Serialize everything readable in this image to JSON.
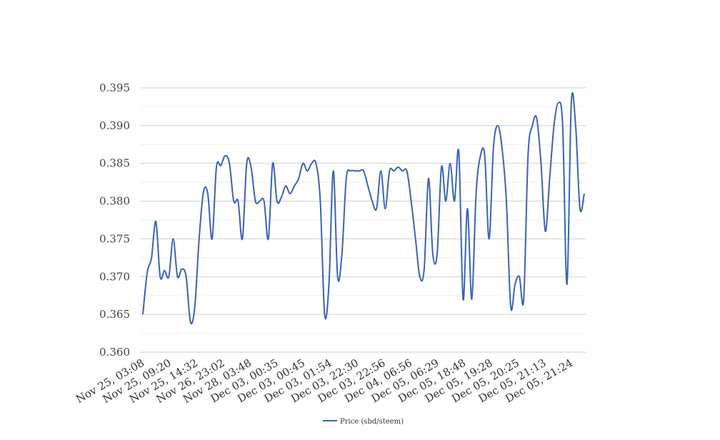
{
  "chart_data": {
    "type": "line",
    "title": "",
    "xlabel": "",
    "ylabel": "",
    "ylim": [
      0.36,
      0.395
    ],
    "grid": true,
    "legend_position": "bottom",
    "y_ticks": [
      "0.360",
      "0.365",
      "0.370",
      "0.375",
      "0.380",
      "0.385",
      "0.390",
      "0.395"
    ],
    "x_tick_labels": [
      "Nov 25, 03:08",
      "Nov 25, 09:20",
      "Nov 25, 14:32",
      "Nov 26, 23:02",
      "Nov 28, 03:48",
      "Dec 03, 00:35",
      "Dec 03, 00:45",
      "Dec 03, 01:54",
      "Dec 03, 22:30",
      "Dec 03, 22:56",
      "Dec 04, 06:56",
      "Dec 05, 06:29",
      "Dec 05, 18:48",
      "Dec 05, 19:28",
      "Dec 05, 20:25",
      "Dec 05, 21:13",
      "Dec 05, 21:24"
    ],
    "series": [
      {
        "name": "Price (sbd/steem)",
        "color": "#3a62b8",
        "values": [
          0.365,
          0.3705,
          0.3725,
          0.3773,
          0.37,
          0.3708,
          0.37,
          0.375,
          0.37,
          0.371,
          0.37,
          0.364,
          0.366,
          0.375,
          0.3812,
          0.381,
          0.375,
          0.3845,
          0.3847,
          0.386,
          0.385,
          0.38,
          0.38,
          0.375,
          0.385,
          0.3845,
          0.38,
          0.38,
          0.38,
          0.375,
          0.385,
          0.38,
          0.3805,
          0.382,
          0.381,
          0.382,
          0.383,
          0.385,
          0.384,
          0.385,
          0.385,
          0.38,
          0.365,
          0.369,
          0.384,
          0.37,
          0.373,
          0.383,
          0.384,
          0.384,
          0.384,
          0.384,
          0.382,
          0.38,
          0.379,
          0.384,
          0.379,
          0.384,
          0.384,
          0.3845,
          0.384,
          0.384,
          0.38,
          0.375,
          0.37,
          0.371,
          0.383,
          0.373,
          0.373,
          0.3845,
          0.38,
          0.385,
          0.38,
          0.3865,
          0.367,
          0.379,
          0.367,
          0.381,
          0.386,
          0.386,
          0.375,
          0.387,
          0.39,
          0.387,
          0.38,
          0.366,
          0.369,
          0.37,
          0.367,
          0.386,
          0.39,
          0.391,
          0.385,
          0.376,
          0.383,
          0.39,
          0.393,
          0.39,
          0.369,
          0.393,
          0.39,
          0.379,
          0.381
        ]
      }
    ]
  }
}
